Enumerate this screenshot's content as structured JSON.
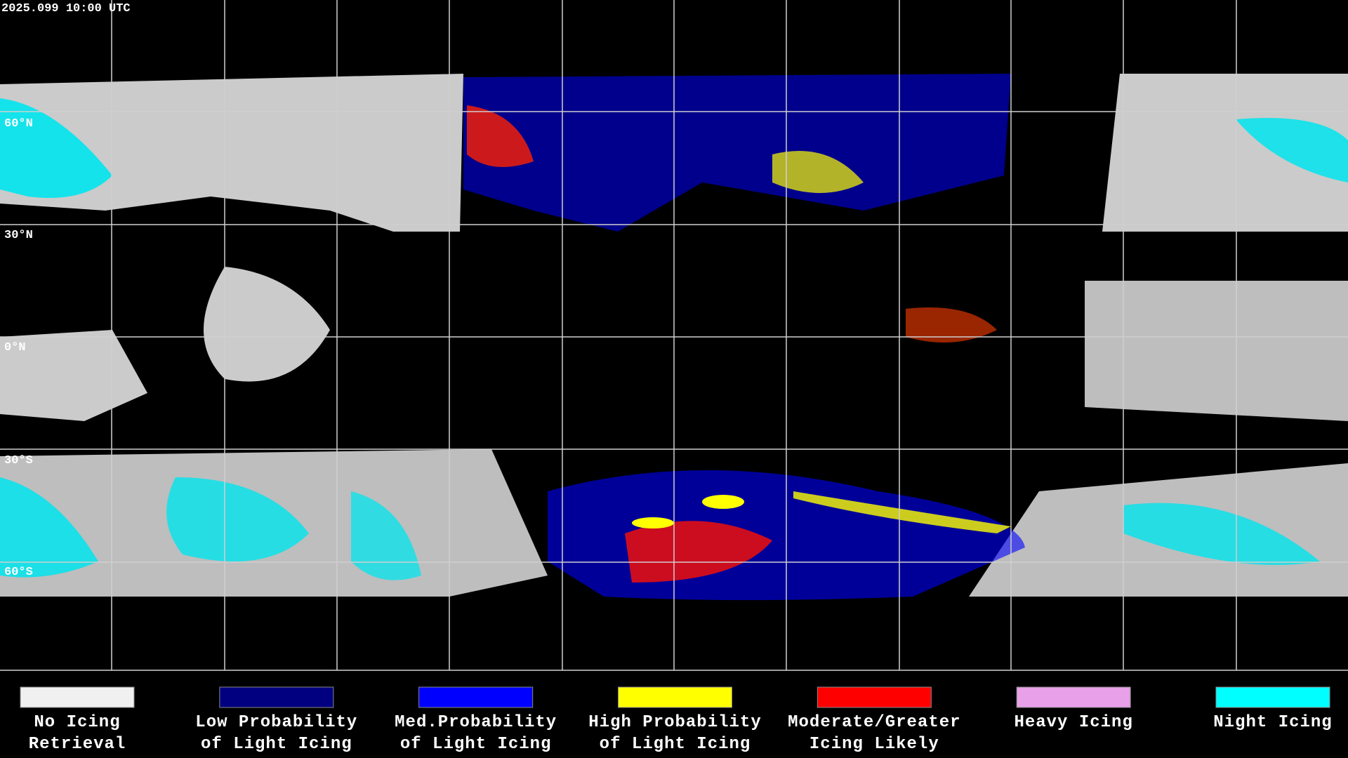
{
  "timestamp": "2025.099 10:00 UTC",
  "latitude_labels": [
    "60°N",
    "30°N",
    "0°N",
    "30°S",
    "60°S"
  ],
  "legend": [
    {
      "lines": [
        "No Icing",
        "Retrieval"
      ],
      "color": "#f0f0f0"
    },
    {
      "lines": [
        "Low Probability",
        "of Light Icing"
      ],
      "color": "#000080"
    },
    {
      "lines": [
        "Med.Probability",
        "of Light Icing"
      ],
      "color": "#0000ff"
    },
    {
      "lines": [
        "High Probability",
        "of Light Icing"
      ],
      "color": "#ffff00"
    },
    {
      "lines": [
        "Moderate/Greater",
        "Icing Likely"
      ],
      "color": "#ff0000"
    },
    {
      "lines": [
        "Heavy Icing"
      ],
      "color": "#e8a0e8"
    },
    {
      "lines": [
        "Night Icing"
      ],
      "color": "#00ffff"
    }
  ]
}
